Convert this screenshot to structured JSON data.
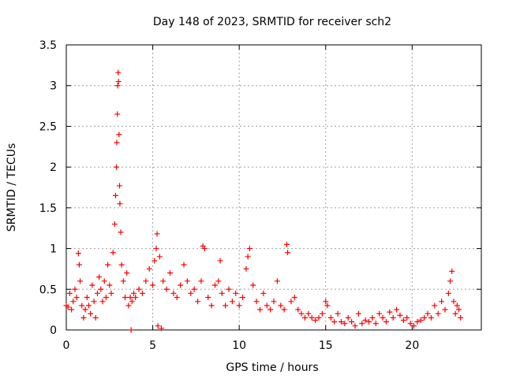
{
  "chart_data": {
    "type": "scatter",
    "title": "Day 148 of 2023, SRMTID for receiver sch2",
    "xlabel": "GPS time / hours",
    "ylabel": "SRMTID / TECUs",
    "xlim": [
      0,
      24
    ],
    "ylim": [
      0,
      3.5
    ],
    "xticks": [
      0,
      5,
      10,
      15,
      20
    ],
    "xtick_labels": [
      "0",
      "5",
      "10",
      "15",
      "20"
    ],
    "yticks": [
      0,
      0.5,
      1,
      1.5,
      2,
      2.5,
      3,
      3.5
    ],
    "ytick_labels": [
      "0",
      "0.5",
      "1",
      "1.5",
      "2",
      "2.5",
      "3",
      "3.5"
    ],
    "grid": true,
    "marker": "+",
    "series": [
      {
        "name": "SRMTID",
        "color": "#ff0000",
        "points": [
          [
            0.0,
            0.3
          ],
          [
            0.1,
            0.28
          ],
          [
            0.2,
            0.45
          ],
          [
            0.3,
            0.25
          ],
          [
            0.4,
            0.35
          ],
          [
            0.5,
            0.5
          ],
          [
            0.6,
            0.4
          ],
          [
            0.7,
            0.94
          ],
          [
            0.75,
            0.8
          ],
          [
            0.8,
            0.6
          ],
          [
            0.9,
            0.3
          ],
          [
            1.0,
            0.15
          ],
          [
            1.1,
            0.25
          ],
          [
            1.2,
            0.4
          ],
          [
            1.3,
            0.3
          ],
          [
            1.4,
            0.2
          ],
          [
            1.5,
            0.55
          ],
          [
            1.6,
            0.35
          ],
          [
            1.7,
            0.15
          ],
          [
            1.8,
            0.45
          ],
          [
            1.9,
            0.65
          ],
          [
            2.0,
            0.5
          ],
          [
            2.1,
            0.35
          ],
          [
            2.2,
            0.6
          ],
          [
            2.3,
            0.4
          ],
          [
            2.4,
            0.8
          ],
          [
            2.5,
            0.55
          ],
          [
            2.6,
            0.45
          ],
          [
            2.7,
            0.95
          ],
          [
            2.8,
            1.3
          ],
          [
            2.85,
            1.65
          ],
          [
            2.9,
            2.0
          ],
          [
            2.92,
            2.3
          ],
          [
            2.95,
            2.65
          ],
          [
            2.97,
            3.0
          ],
          [
            3.0,
            3.16
          ],
          [
            3.02,
            3.05
          ],
          [
            3.05,
            2.4
          ],
          [
            3.08,
            1.77
          ],
          [
            3.1,
            1.55
          ],
          [
            3.15,
            1.2
          ],
          [
            3.2,
            0.8
          ],
          [
            3.3,
            0.6
          ],
          [
            3.4,
            0.4
          ],
          [
            3.5,
            0.7
          ],
          [
            3.6,
            0.3
          ],
          [
            3.7,
            0.4
          ],
          [
            3.8,
            0.35
          ],
          [
            3.9,
            0.45
          ],
          [
            3.75,
            0.0
          ],
          [
            4.0,
            0.4
          ],
          [
            4.2,
            0.5
          ],
          [
            4.4,
            0.45
          ],
          [
            4.6,
            0.6
          ],
          [
            4.8,
            0.75
          ],
          [
            5.0,
            0.55
          ],
          [
            5.1,
            0.85
          ],
          [
            5.2,
            1.0
          ],
          [
            5.25,
            1.18
          ],
          [
            5.3,
            0.05
          ],
          [
            5.4,
            0.9
          ],
          [
            5.5,
            0.02
          ],
          [
            5.6,
            0.6
          ],
          [
            5.8,
            0.5
          ],
          [
            6.0,
            0.7
          ],
          [
            6.2,
            0.45
          ],
          [
            6.4,
            0.4
          ],
          [
            6.6,
            0.55
          ],
          [
            6.8,
            0.8
          ],
          [
            7.0,
            0.6
          ],
          [
            7.2,
            0.45
          ],
          [
            7.4,
            0.5
          ],
          [
            7.6,
            0.35
          ],
          [
            7.8,
            0.6
          ],
          [
            7.9,
            1.03
          ],
          [
            8.0,
            1.0
          ],
          [
            8.2,
            0.4
          ],
          [
            8.4,
            0.3
          ],
          [
            8.6,
            0.55
          ],
          [
            8.8,
            0.6
          ],
          [
            8.9,
            0.85
          ],
          [
            9.0,
            0.45
          ],
          [
            9.2,
            0.3
          ],
          [
            9.4,
            0.5
          ],
          [
            9.6,
            0.35
          ],
          [
            9.8,
            0.45
          ],
          [
            10.0,
            0.3
          ],
          [
            10.2,
            0.4
          ],
          [
            10.4,
            0.75
          ],
          [
            10.5,
            0.9
          ],
          [
            10.6,
            1.0
          ],
          [
            10.8,
            0.55
          ],
          [
            11.0,
            0.35
          ],
          [
            11.2,
            0.25
          ],
          [
            11.4,
            0.45
          ],
          [
            11.6,
            0.3
          ],
          [
            11.8,
            0.25
          ],
          [
            12.0,
            0.35
          ],
          [
            12.2,
            0.6
          ],
          [
            12.4,
            0.3
          ],
          [
            12.6,
            0.25
          ],
          [
            12.75,
            1.05
          ],
          [
            12.8,
            0.95
          ],
          [
            13.0,
            0.35
          ],
          [
            13.2,
            0.4
          ],
          [
            13.4,
            0.25
          ],
          [
            13.6,
            0.2
          ],
          [
            13.8,
            0.15
          ],
          [
            14.0,
            0.2
          ],
          [
            14.2,
            0.15
          ],
          [
            14.4,
            0.12
          ],
          [
            14.6,
            0.15
          ],
          [
            14.8,
            0.2
          ],
          [
            15.0,
            0.35
          ],
          [
            15.1,
            0.3
          ],
          [
            15.3,
            0.15
          ],
          [
            15.5,
            0.1
          ],
          [
            15.7,
            0.2
          ],
          [
            15.9,
            0.1
          ],
          [
            16.1,
            0.08
          ],
          [
            16.3,
            0.15
          ],
          [
            16.5,
            0.1
          ],
          [
            16.7,
            0.05
          ],
          [
            16.9,
            0.2
          ],
          [
            17.1,
            0.08
          ],
          [
            17.3,
            0.12
          ],
          [
            17.5,
            0.1
          ],
          [
            17.7,
            0.15
          ],
          [
            17.9,
            0.08
          ],
          [
            18.1,
            0.2
          ],
          [
            18.3,
            0.15
          ],
          [
            18.5,
            0.1
          ],
          [
            18.7,
            0.22
          ],
          [
            18.9,
            0.15
          ],
          [
            19.1,
            0.25
          ],
          [
            19.3,
            0.18
          ],
          [
            19.5,
            0.12
          ],
          [
            19.7,
            0.15
          ],
          [
            19.9,
            0.08
          ],
          [
            20.1,
            0.05
          ],
          [
            20.3,
            0.1
          ],
          [
            20.5,
            0.12
          ],
          [
            20.7,
            0.15
          ],
          [
            20.9,
            0.2
          ],
          [
            21.1,
            0.15
          ],
          [
            21.3,
            0.3
          ],
          [
            21.5,
            0.2
          ],
          [
            21.7,
            0.35
          ],
          [
            21.9,
            0.25
          ],
          [
            22.1,
            0.45
          ],
          [
            22.2,
            0.6
          ],
          [
            22.3,
            0.72
          ],
          [
            22.4,
            0.35
          ],
          [
            22.5,
            0.2
          ],
          [
            22.6,
            0.3
          ],
          [
            22.7,
            0.25
          ],
          [
            22.8,
            0.15
          ]
        ]
      }
    ]
  }
}
